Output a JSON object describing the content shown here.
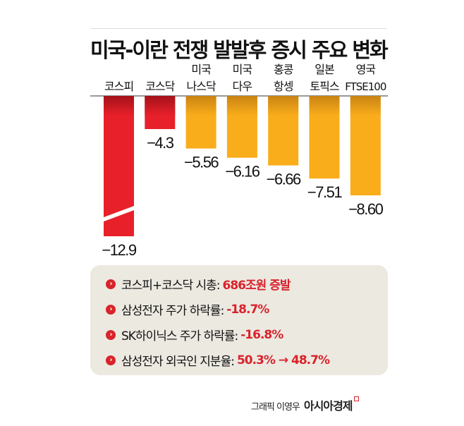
{
  "chart_data": {
    "type": "bar",
    "title": "미국-이란 전쟁 발발후 증시 주요 변화",
    "categories": [
      [
        "코스피"
      ],
      [
        "코스닥"
      ],
      [
        "미국",
        "나스닥"
      ],
      [
        "미국",
        "다우"
      ],
      [
        "홍콩",
        "항셍"
      ],
      [
        "일본",
        "토픽스"
      ],
      [
        "영국",
        "FTSE100"
      ]
    ],
    "values": [
      -12.9,
      -4.3,
      -5.56,
      -6.16,
      -6.66,
      -7.51,
      -8.6
    ],
    "value_labels": [
      "-12.9",
      "-4.3",
      "-5.56",
      "-6.16",
      "-6.66",
      "-7.51",
      "-8.60"
    ],
    "colors": [
      "#e8202a",
      "#e8202a",
      "#f9ad1b",
      "#f9ad1b",
      "#f9ad1b",
      "#f9ad1b",
      "#f9ad1b"
    ],
    "broken_axis_bars": [
      "코스피"
    ],
    "xlabel": "",
    "ylabel": ""
  },
  "summary": [
    {
      "label": "코스피+코스닥 시총:",
      "value": "686조원 증발"
    },
    {
      "label": "삼성전자 주가 하락률:",
      "value": "-18.7%"
    },
    {
      "label": "SK하이닉스 주가 하락률:",
      "value": "-16.8%"
    },
    {
      "label": "삼성전자 외국인 지분율:",
      "value": "50.3% → 48.7%"
    }
  ],
  "bullet_icon": "chevron-right-icon",
  "credit": {
    "byline": "그래픽 이영우",
    "brand": "아시아경제"
  }
}
